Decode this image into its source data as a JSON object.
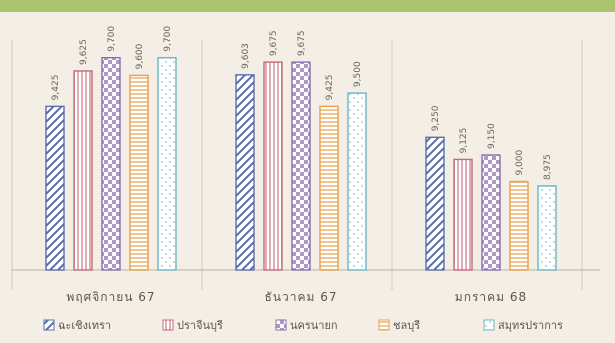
{
  "chart_data": {
    "type": "bar",
    "categories": [
      "พฤศจิกายน 67",
      "ธันวาคม 67",
      "มกราคม 68"
    ],
    "series": [
      {
        "name": "ฉะเชิงเทรา",
        "values": [
          9.425,
          9.603,
          9.25
        ],
        "color": "#5b6ea8",
        "pattern": "diagonal"
      },
      {
        "name": "ปราจีนบุรี",
        "values": [
          9.625,
          9.675,
          9.125
        ],
        "color": "#c46a78",
        "pattern": "vertical"
      },
      {
        "name": "นครนายก",
        "values": [
          9.7,
          9.675,
          9.15
        ],
        "color": "#8a6fb0",
        "pattern": "checker"
      },
      {
        "name": "ชลบุรี",
        "values": [
          9.6,
          9.425,
          9.0
        ],
        "color": "#e8a04a",
        "pattern": "horizontal"
      },
      {
        "name": "สมุทรปราการ",
        "values": [
          9.7,
          9.5,
          8.975
        ],
        "color": "#6bb6c2",
        "pattern": "dots"
      }
    ],
    "data_labels": [
      [
        "9,425",
        "9,625",
        "9,700",
        "9,600",
        "9,700"
      ],
      [
        "9,603",
        "9,675",
        "9,675",
        "9,425",
        "9,500"
      ],
      [
        "9,250",
        "9,125",
        "9,150",
        "9,000",
        "8,975"
      ]
    ],
    "ylim": [
      8.5,
      9.8
    ],
    "legend_position": "bottom",
    "grid": false
  }
}
